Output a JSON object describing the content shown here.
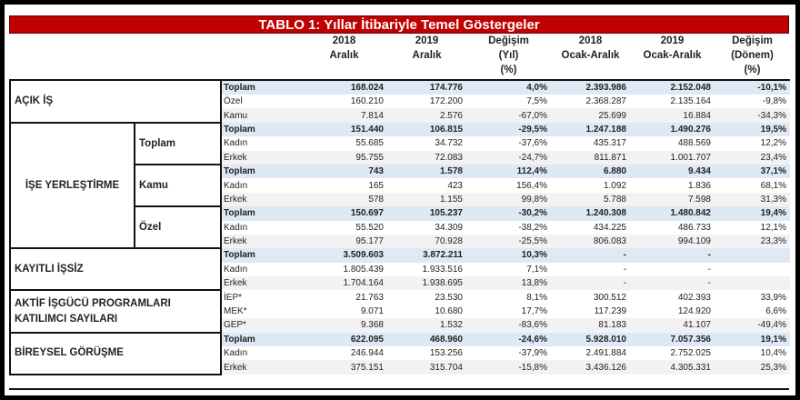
{
  "title": "TABLO 1: Yıllar İtibariyle Temel Göstergeler",
  "header": [
    {
      "l1": "2018",
      "l2": "Aralık"
    },
    {
      "l1": "2019",
      "l2": "Aralık"
    },
    {
      "l1": "Değişim",
      "l2": "(Yıl)",
      "l3": "(%)"
    },
    {
      "l1": "2018",
      "l2": "Ocak-Aralık"
    },
    {
      "l1": "2019",
      "l2": "Ocak-Aralık"
    },
    {
      "l1": "Değişim",
      "l2": "(Dönem)",
      "l3": "(%)"
    }
  ],
  "groups": [
    {
      "label": "AÇIK İŞ",
      "rows": [
        [
          "Toplam",
          "168.024",
          "174.776",
          "4,0%",
          "2.393.986",
          "2.152.048",
          "-10,1%"
        ],
        [
          "Özel",
          "160.210",
          "172.200",
          "7,5%",
          "2.368.287",
          "2.135.164",
          "-9,8%"
        ],
        [
          "Kamu",
          "7.814",
          "2.576",
          "-67,0%",
          "25.699",
          "16.884",
          "-34,3%"
        ]
      ]
    },
    {
      "label": "İŞE YERLEŞTİRME",
      "subgroups": [
        {
          "label": "Toplam",
          "rows": [
            [
              "Toplam",
              "151.440",
              "106.815",
              "-29,5%",
              "1.247.188",
              "1.490.276",
              "19,5%"
            ],
            [
              "Kadın",
              "55.685",
              "34.732",
              "-37,6%",
              "435.317",
              "488.569",
              "12,2%"
            ],
            [
              "Erkek",
              "95.755",
              "72.083",
              "-24,7%",
              "811.871",
              "1.001.707",
              "23,4%"
            ]
          ]
        },
        {
          "label": "Kamu",
          "rows": [
            [
              "Toplam",
              "743",
              "1.578",
              "112,4%",
              "6.880",
              "9.434",
              "37,1%"
            ],
            [
              "Kadın",
              "165",
              "423",
              "156,4%",
              "1.092",
              "1.836",
              "68,1%"
            ],
            [
              "Erkek",
              "578",
              "1.155",
              "99,8%",
              "5.788",
              "7.598",
              "31,3%"
            ]
          ]
        },
        {
          "label": "Özel",
          "rows": [
            [
              "Toplam",
              "150.697",
              "105.237",
              "-30,2%",
              "1.240.308",
              "1.480.842",
              "19,4%"
            ],
            [
              "Kadın",
              "55.520",
              "34.309",
              "-38,2%",
              "434.225",
              "486.733",
              "12,1%"
            ],
            [
              "Erkek",
              "95.177",
              "70.928",
              "-25,5%",
              "806.083",
              "994.109",
              "23,3%"
            ]
          ]
        }
      ]
    },
    {
      "label": "KAYITLI İŞSİZ",
      "rows": [
        [
          "Toplam",
          "3.509.603",
          "3.872.211",
          "10,3%",
          "-",
          "-",
          ""
        ],
        [
          "Kadın",
          "1.805.439",
          "1.933.516",
          "7,1%",
          "-",
          "-",
          ""
        ],
        [
          "Erkek",
          "1.704.164",
          "1.938.695",
          "13,8%",
          "-",
          "-",
          ""
        ]
      ]
    },
    {
      "label": "AKTİF İŞGÜCÜ PROGRAMLARI KATILIMCI SAYILARI",
      "notot": true,
      "rows": [
        [
          "İEP*",
          "21.763",
          "23.530",
          "8,1%",
          "300.512",
          "402.393",
          "33,9%"
        ],
        [
          "MEK*",
          "9.071",
          "10.680",
          "17,7%",
          "117.239",
          "124.920",
          "6,6%"
        ],
        [
          "GEP*",
          "9.368",
          "1.532",
          "-83,6%",
          "81.183",
          "41.107",
          "-49,4%"
        ]
      ]
    },
    {
      "label": "BİREYSEL GÖRÜŞME",
      "rows": [
        [
          "Toplam",
          "622.095",
          "468.960",
          "-24,6%",
          "5.928.010",
          "7.057.356",
          "19,1%"
        ],
        [
          "Kadın",
          "246.944",
          "153.256",
          "-37,9%",
          "2.491.884",
          "2.752.025",
          "10,4%"
        ],
        [
          "Erkek",
          "375.151",
          "315.704",
          "-15,8%",
          "3.436.126",
          "4.305.331",
          "25,3%"
        ]
      ]
    }
  ]
}
